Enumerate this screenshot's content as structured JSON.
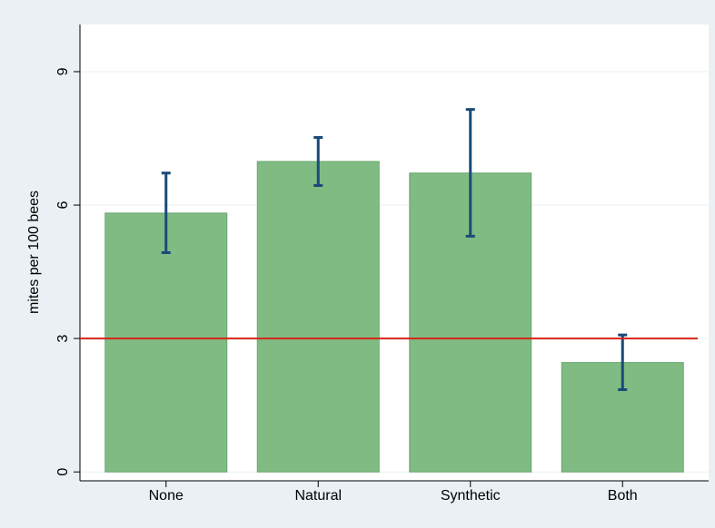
{
  "chart_data": {
    "type": "bar",
    "y_label": "mites per 100 bees",
    "categories": [
      "None",
      "Natural",
      "Synthetic",
      "Both"
    ],
    "values": [
      5.82,
      6.98,
      6.72,
      2.46
    ],
    "error_low": [
      4.93,
      6.44,
      5.3,
      1.85
    ],
    "error_high": [
      6.72,
      7.52,
      8.15,
      3.08
    ],
    "color": "#7fbb83",
    "error_color": "#1a4a78",
    "reference_line": 3,
    "reference_color": "#d62418",
    "ylim": [
      -0.2,
      10.06
    ],
    "yticks": [
      0,
      3,
      6,
      9
    ],
    "grid": true
  }
}
